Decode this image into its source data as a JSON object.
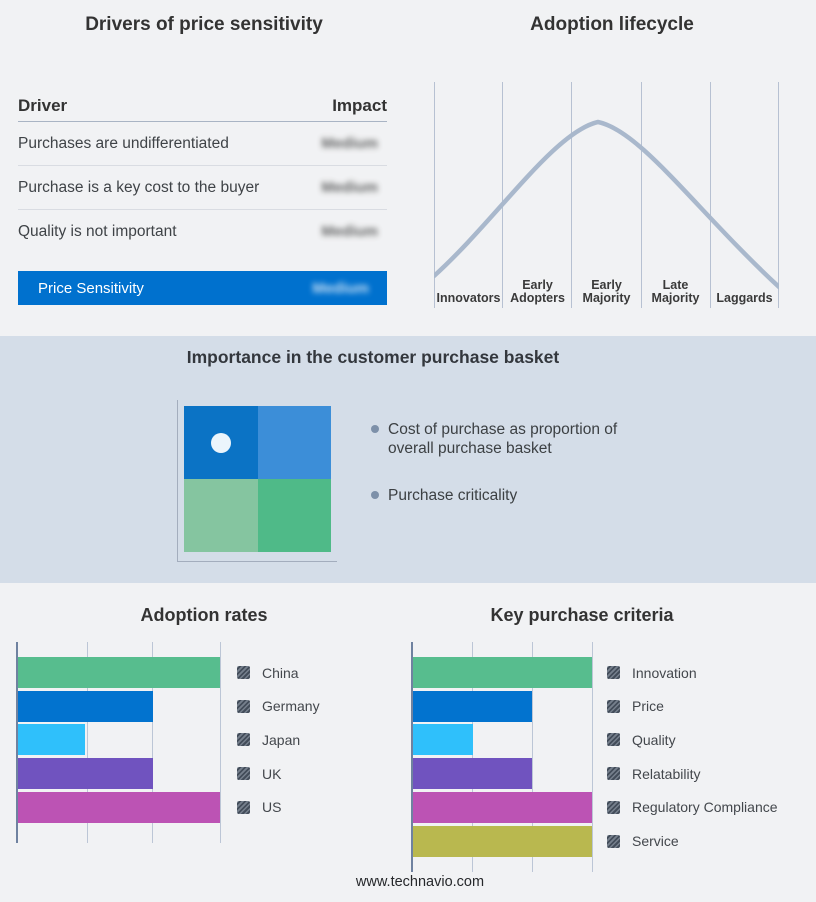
{
  "drivers_panel": {
    "title": "Drivers of price sensitivity",
    "table": {
      "headers": {
        "driver": "Driver",
        "impact": "Impact"
      },
      "rows": [
        {
          "driver": "Purchases are undifferentiated",
          "impact": "Medium"
        },
        {
          "driver": "Purchase is a key cost to the buyer",
          "impact": "Medium"
        },
        {
          "driver": "Quality is not important",
          "impact": "Medium"
        }
      ],
      "highlight_row": {
        "driver": "Price Sensitivity",
        "impact": "Medium",
        "background": "#0071ce"
      }
    }
  },
  "lifecycle_panel": {
    "title": "Adoption lifecycle",
    "stages": [
      "Innovators",
      "Early Adopters",
      "Early Majority",
      "Late Majority",
      "Laggards"
    ],
    "curve_color": "#a9b8cc",
    "gridline_color": "#b7c1d2"
  },
  "basket_panel": {
    "title": "Importance in the customer purchase basket",
    "background": "#d4dde8",
    "bullets": [
      "Cost of purchase as proportion of overall purchase basket",
      "Purchase criticality"
    ],
    "quadrant_colors": {
      "top_left": "#0b73c5",
      "top_right": "#3c8ed8",
      "bottom_left": "#85c5a0",
      "bottom_right": "#4fba88"
    },
    "marker_dot_color": "#ebf5fc"
  },
  "chart_data": [
    {
      "type": "bar",
      "orientation": "horizontal",
      "title": "Adoption rates",
      "categories": [
        "China",
        "Germany",
        "Japan",
        "UK",
        "US"
      ],
      "values": [
        3,
        2,
        1,
        2,
        3
      ],
      "xlim": [
        0,
        3
      ],
      "grid": true,
      "legend_position": "right",
      "colors": [
        "#57bd8e",
        "#0273cf",
        "#2fc0fb",
        "#7053bf",
        "#bc53b4"
      ]
    },
    {
      "type": "bar",
      "orientation": "horizontal",
      "title": "Key purchase criteria",
      "categories": [
        "Innovation",
        "Price",
        "Quality",
        "Relatability",
        "Regulatory Compliance",
        "Service"
      ],
      "values": [
        3,
        2,
        1,
        2,
        3,
        3
      ],
      "xlim": [
        0,
        3
      ],
      "grid": true,
      "legend_position": "right",
      "colors": [
        "#57bd8e",
        "#0273cf",
        "#2fc0fb",
        "#7053bf",
        "#bc53b4",
        "#b9b84f"
      ]
    }
  ],
  "footer": {
    "url_text": "www.technavio.com"
  }
}
